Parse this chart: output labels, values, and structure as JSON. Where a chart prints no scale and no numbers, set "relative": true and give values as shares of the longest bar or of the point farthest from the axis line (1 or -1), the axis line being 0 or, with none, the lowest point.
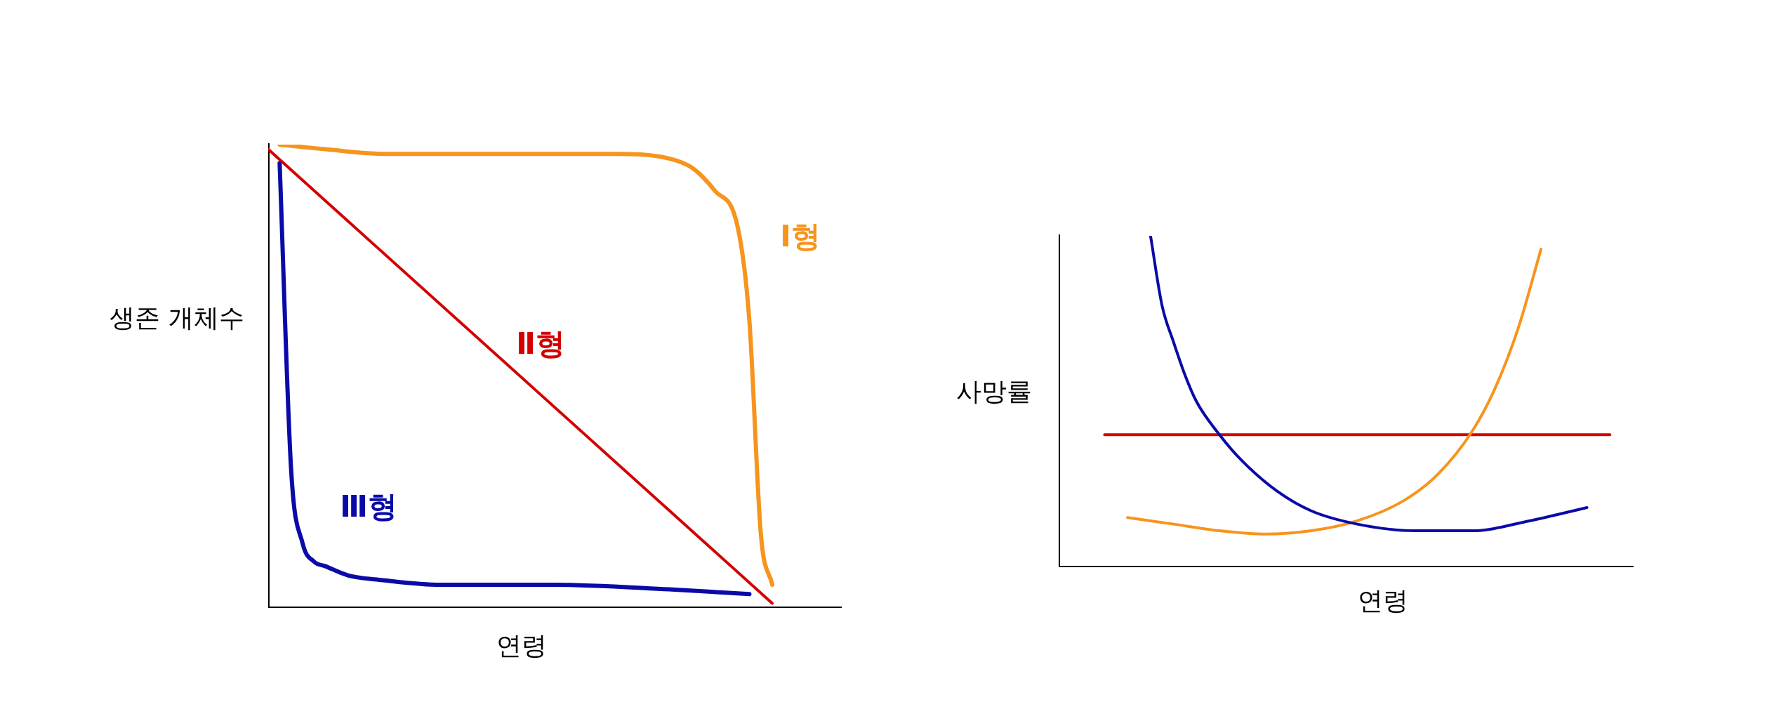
{
  "chart_data": [
    {
      "type": "line",
      "relative": true,
      "xlabel": "연령",
      "ylabel": "생존 개체수",
      "legend": false,
      "categories": [
        null,
        null,
        null,
        null,
        null,
        null,
        null,
        null,
        null,
        null,
        null,
        null,
        null,
        null,
        null,
        null,
        null,
        null,
        null,
        null,
        null,
        null,
        null,
        null,
        null,
        null,
        null,
        null,
        null,
        null,
        null,
        null,
        null,
        null,
        null,
        null,
        null,
        null,
        null,
        null,
        null,
        null,
        null,
        null,
        null,
        null,
        null,
        null,
        null,
        null,
        null
      ],
      "series": [
        {
          "name": "Ⅰ형",
          "color": "#f7941d",
          "values": [
            null,
            1,
            null,
            null,
            null,
            0.99,
            null,
            null,
            null,
            null,
            0.98,
            null,
            null,
            null,
            null,
            null,
            null,
            null,
            null,
            null,
            0.98,
            null,
            null,
            null,
            null,
            null,
            null,
            null,
            null,
            null,
            0.98,
            null,
            null,
            null,
            null,
            0.97,
            null,
            0.95,
            null,
            0.9,
            null,
            0.82,
            0.62,
            0.16,
            0.05,
            null,
            null,
            null,
            null,
            null,
            null
          ]
        },
        {
          "name": "Ⅱ형",
          "color": "#d40000",
          "values": [
            0.99,
            null,
            null,
            null,
            null,
            null,
            null,
            null,
            null,
            null,
            null,
            null,
            null,
            null,
            null,
            null,
            null,
            null,
            null,
            null,
            null,
            null,
            null,
            null,
            null,
            null,
            null,
            null,
            null,
            null,
            null,
            null,
            null,
            null,
            null,
            null,
            null,
            null,
            null,
            null,
            null,
            null,
            null,
            null,
            0.01,
            null,
            null,
            null,
            null,
            null,
            null
          ]
        },
        {
          "name": "Ⅲ형",
          "color": "#0a0aa8",
          "values": [
            null,
            0.96,
            0.3,
            0.14,
            0.1,
            0.09,
            null,
            0.07,
            null,
            null,
            0.06,
            null,
            null,
            null,
            null,
            0.05,
            null,
            null,
            null,
            null,
            null,
            null,
            null,
            null,
            null,
            0.05,
            null,
            null,
            null,
            null,
            null,
            null,
            null,
            null,
            null,
            0.04,
            null,
            null,
            null,
            null,
            null,
            null,
            0.03,
            null,
            null,
            null,
            null,
            null,
            null,
            null,
            null
          ]
        }
      ]
    },
    {
      "type": "line",
      "relative": true,
      "xlabel": "연령",
      "ylabel": "사망률",
      "legend": false,
      "categories": [
        null,
        null,
        null,
        null,
        null,
        null,
        null,
        null,
        null,
        null,
        null,
        null,
        null,
        null,
        null,
        null,
        null,
        null,
        null,
        null,
        null,
        null,
        null,
        null,
        null,
        null,
        null,
        null,
        null,
        null,
        null,
        null,
        null,
        null,
        null,
        null,
        null,
        null,
        null,
        null,
        null,
        null,
        null,
        null,
        null,
        null,
        null,
        null,
        null,
        null,
        null
      ],
      "series": [
        {
          "color": "#0a0aa8",
          "values": [
            null,
            null,
            null,
            null,
            null,
            null,
            null,
            null,
            1,
            0.79,
            0.68,
            0.58,
            0.5,
            null,
            0.4,
            null,
            0.32,
            null,
            null,
            0.23,
            null,
            null,
            0.17,
            null,
            null,
            null,
            0.13,
            null,
            null,
            null,
            null,
            0.11,
            null,
            null,
            null,
            null,
            0.11,
            null,
            null,
            null,
            null,
            0.14,
            null,
            null,
            null,
            null,
            0.18,
            null,
            null,
            null,
            null
          ]
        },
        {
          "color": "#f7941d",
          "values": [
            null,
            null,
            null,
            null,
            null,
            null,
            0.15,
            null,
            null,
            null,
            0.13,
            null,
            null,
            null,
            0.11,
            null,
            null,
            null,
            0.1,
            null,
            null,
            null,
            0.11,
            null,
            null,
            null,
            0.14,
            null,
            null,
            null,
            0.2,
            null,
            null,
            0.28,
            null,
            null,
            0.41,
            null,
            0.54,
            null,
            0.72,
            null,
            0.96,
            null,
            null,
            null,
            null,
            null,
            null,
            null,
            null
          ]
        },
        {
          "color": "#d40000",
          "values": [
            null,
            null,
            null,
            null,
            0.4,
            null,
            null,
            null,
            null,
            null,
            null,
            null,
            null,
            null,
            null,
            null,
            null,
            null,
            null,
            null,
            null,
            null,
            null,
            null,
            null,
            null,
            null,
            null,
            null,
            null,
            null,
            null,
            null,
            null,
            null,
            null,
            null,
            null,
            null,
            null,
            null,
            null,
            null,
            null,
            null,
            null,
            null,
            null,
            0.4,
            null,
            null
          ]
        }
      ]
    }
  ]
}
